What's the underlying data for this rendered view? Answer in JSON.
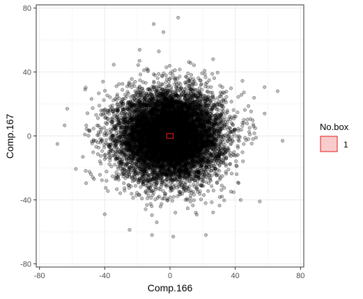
{
  "chart_data": {
    "type": "scatter",
    "xlabel": "Comp.166",
    "ylabel": "Comp.167",
    "xlim": [
      -82,
      82
    ],
    "ylim": [
      -82,
      82
    ],
    "x_ticks": [
      -80,
      -40,
      0,
      40,
      80
    ],
    "y_ticks": [
      -80,
      -40,
      0,
      40,
      80
    ],
    "grid": true,
    "point_color": "#000000",
    "point_fill_opacity": 0.25,
    "point_count_estimate": 9000,
    "center": [
      0,
      0
    ],
    "spread_sd": [
      16,
      14
    ],
    "extremes": [
      {
        "x": -69,
        "y": -5
      },
      {
        "x": 69,
        "y": -3
      },
      {
        "x": 66,
        "y": 28
      },
      {
        "x": -63,
        "y": 17
      },
      {
        "x": -10,
        "y": 70
      },
      {
        "x": 5,
        "y": 74
      },
      {
        "x": -4,
        "y": 65
      },
      {
        "x": 2,
        "y": -63
      },
      {
        "x": -11,
        "y": -62
      },
      {
        "x": 22,
        "y": -62
      },
      {
        "x": 55,
        "y": -41
      },
      {
        "x": -40,
        "y": -49
      },
      {
        "x": 58,
        "y": 14
      },
      {
        "x": -52,
        "y": 29
      }
    ],
    "box": {
      "x0": -2,
      "x1": 2,
      "y0": -1.5,
      "y1": 1.5,
      "stroke": "#e41a1c",
      "fill": "#f8b4b4"
    },
    "legend": {
      "title": "No.box",
      "items": [
        {
          "label": "1",
          "fill": "#f8cccc",
          "stroke": "#e41a1c"
        }
      ],
      "position": "right"
    }
  }
}
